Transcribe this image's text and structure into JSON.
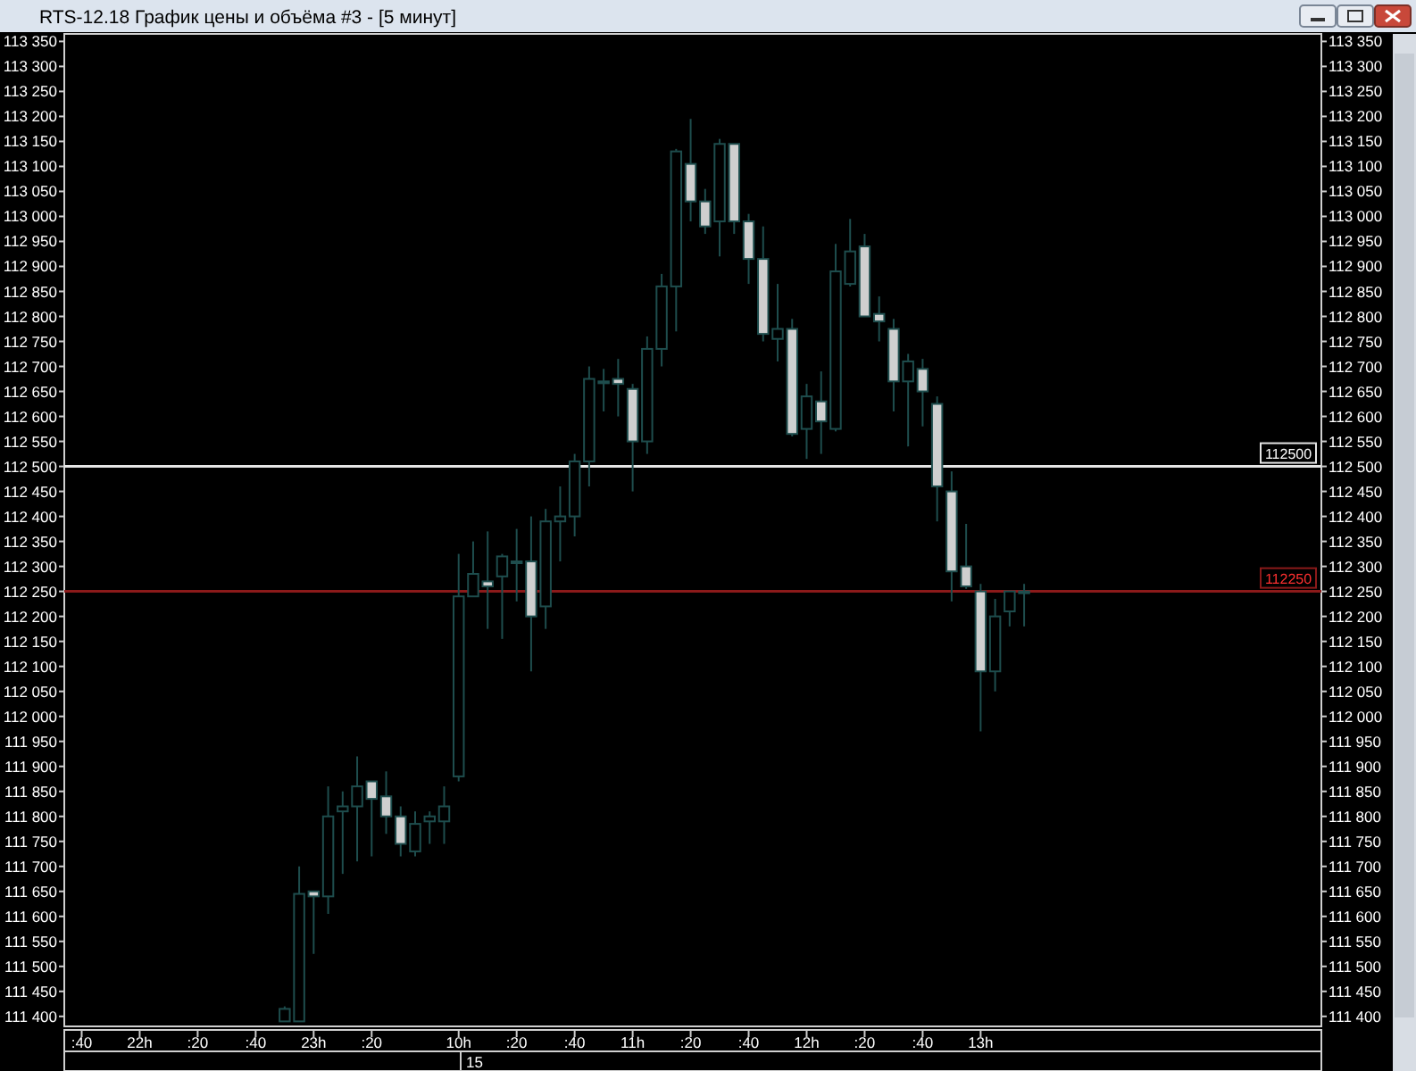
{
  "chart_data": {
    "type": "candlestick",
    "title": "RTS-12.18 График цены и объёма #3 - [5 минут]",
    "categories": [
      ":40",
      null,
      null,
      null,
      "22h",
      null,
      null,
      null,
      ":20",
      null,
      null,
      null,
      ":40",
      null,
      null,
      null,
      "23h",
      null,
      null,
      null,
      ":20",
      null,
      null,
      null,
      null,
      null,
      "10h",
      null,
      null,
      null,
      ":20",
      null,
      null,
      null,
      ":40",
      null,
      null,
      null,
      "11h",
      null,
      null,
      null,
      ":20",
      null,
      null,
      null,
      ":40",
      null,
      null,
      null,
      "12h",
      null,
      null,
      null,
      ":20",
      null,
      null,
      null,
      ":40",
      null,
      null,
      null,
      "13h",
      null,
      null,
      null,
      null,
      null,
      null,
      null,
      null,
      null,
      null,
      null,
      null,
      null,
      null,
      null,
      null,
      null,
      null,
      null,
      null,
      null,
      null,
      null
    ],
    "ohlc": [
      null,
      null,
      null,
      null,
      null,
      null,
      null,
      null,
      null,
      null,
      null,
      null,
      null,
      null,
      [
        111390,
        111420,
        111390,
        111415
      ],
      [
        111390,
        111700,
        111390,
        111645
      ],
      [
        111650,
        111650,
        111525,
        111640
      ],
      [
        111640,
        111860,
        111605,
        111800
      ],
      [
        111810,
        111850,
        111685,
        111820
      ],
      [
        111820,
        111920,
        111710,
        111860
      ],
      [
        111870,
        111870,
        111720,
        111835
      ],
      [
        111840,
        111890,
        111765,
        111800
      ],
      [
        111800,
        111820,
        111720,
        111745
      ],
      [
        111730,
        111810,
        111720,
        111785
      ],
      [
        111790,
        111810,
        111745,
        111800
      ],
      [
        111790,
        111860,
        111745,
        111820
      ],
      [
        111880,
        112325,
        111870,
        112240
      ],
      [
        112240,
        112350,
        112240,
        112285
      ],
      [
        112270,
        112370,
        112175,
        112260
      ],
      [
        112280,
        112325,
        112155,
        112320
      ],
      [
        112310,
        112375,
        112230,
        112310
      ],
      [
        112310,
        112400,
        112090,
        112200
      ],
      [
        112220,
        112415,
        112175,
        112390
      ],
      [
        112390,
        112460,
        112310,
        112400
      ],
      [
        112400,
        112525,
        112360,
        112510
      ],
      [
        112510,
        112700,
        112460,
        112675
      ],
      [
        112670,
        112695,
        112610,
        112670
      ],
      [
        112675,
        112715,
        112600,
        112665
      ],
      [
        112655,
        112665,
        112450,
        112550
      ],
      [
        112550,
        112760,
        112525,
        112735
      ],
      [
        112735,
        112885,
        112700,
        112860
      ],
      [
        112860,
        113135,
        112770,
        113130
      ],
      [
        113105,
        113195,
        112990,
        113030
      ],
      [
        113030,
        113055,
        112965,
        112980
      ],
      [
        112990,
        113155,
        112920,
        113145
      ],
      [
        113145,
        113145,
        112965,
        112990
      ],
      [
        112990,
        113005,
        112865,
        112915
      ],
      [
        112915,
        112980,
        112750,
        112765
      ],
      [
        112755,
        112865,
        112710,
        112775
      ],
      [
        112775,
        112795,
        112560,
        112565
      ],
      [
        112575,
        112665,
        112515,
        112640
      ],
      [
        112630,
        112690,
        112525,
        112590
      ],
      [
        112575,
        112945,
        112570,
        112890
      ],
      [
        112865,
        112995,
        112860,
        112930
      ],
      [
        112940,
        112965,
        112800,
        112800
      ],
      [
        112805,
        112840,
        112750,
        112790
      ],
      [
        112775,
        112795,
        112610,
        112670
      ],
      [
        112670,
        112725,
        112540,
        112710
      ],
      [
        112695,
        112715,
        112580,
        112650
      ],
      [
        112625,
        112640,
        112390,
        112460
      ],
      [
        112450,
        112490,
        112230,
        112290
      ],
      [
        112300,
        112385,
        112255,
        112260
      ],
      [
        112250,
        112265,
        111970,
        112090
      ],
      [
        112090,
        112235,
        112050,
        112200
      ],
      [
        112210,
        112250,
        112180,
        112250
      ],
      [
        112250,
        112265,
        112180,
        112250
      ],
      null,
      null,
      null,
      null,
      null,
      null,
      null,
      null,
      null,
      null,
      null,
      null,
      null,
      null,
      null,
      null,
      null,
      null,
      null,
      null
    ],
    "color": "#1e4d4d",
    "ylim": [
      111380,
      113365
    ],
    "yticks": [
      {
        "value": 111400,
        "label": "111 400"
      },
      {
        "value": 111450,
        "label": "111 450"
      },
      {
        "value": 111500,
        "label": "111 500"
      },
      {
        "value": 111550,
        "label": "111 550"
      },
      {
        "value": 111600,
        "label": "111 600"
      },
      {
        "value": 111650,
        "label": "111 650"
      },
      {
        "value": 111700,
        "label": "111 700"
      },
      {
        "value": 111750,
        "label": "111 750"
      },
      {
        "value": 111800,
        "label": "111 800"
      },
      {
        "value": 111850,
        "label": "111 850"
      },
      {
        "value": 111900,
        "label": "111 900"
      },
      {
        "value": 111950,
        "label": "111 950"
      },
      {
        "value": 112000,
        "label": "112 000"
      },
      {
        "value": 112050,
        "label": "112 050"
      },
      {
        "value": 112100,
        "label": "112 100"
      },
      {
        "value": 112150,
        "label": "112 150"
      },
      {
        "value": 112200,
        "label": "112 200"
      },
      {
        "value": 112250,
        "label": "112 250"
      },
      {
        "value": 112300,
        "label": "112 300"
      },
      {
        "value": 112350,
        "label": "112 350"
      },
      {
        "value": 112400,
        "label": "112 400"
      },
      {
        "value": 112450,
        "label": "112 450"
      },
      {
        "value": 112500,
        "label": "112 500"
      },
      {
        "value": 112550,
        "label": "112 550"
      },
      {
        "value": 112600,
        "label": "112 600"
      },
      {
        "value": 112650,
        "label": "112 650"
      },
      {
        "value": 112700,
        "label": "112 700"
      },
      {
        "value": 112750,
        "label": "112 750"
      },
      {
        "value": 112800,
        "label": "112 800"
      },
      {
        "value": 112850,
        "label": "112 850"
      },
      {
        "value": 112900,
        "label": "112 900"
      },
      {
        "value": 112950,
        "label": "112 950"
      },
      {
        "value": 113000,
        "label": "113 000"
      },
      {
        "value": 113050,
        "label": "113 050"
      },
      {
        "value": 113100,
        "label": "113 100"
      },
      {
        "value": 113150,
        "label": "113 150"
      },
      {
        "value": 113200,
        "label": "113 200"
      },
      {
        "value": 113250,
        "label": "113 250"
      },
      {
        "value": 113300,
        "label": "113 300"
      },
      {
        "value": 113350,
        "label": "113 350"
      }
    ],
    "y2lim": [
      111380,
      113365
    ],
    "y2ticks": [
      {
        "value": 111400,
        "label": "111 400"
      },
      {
        "value": 111450,
        "label": "111 450"
      },
      {
        "value": 111500,
        "label": "111 500"
      },
      {
        "value": 111550,
        "label": "111 550"
      },
      {
        "value": 111600,
        "label": "111 600"
      },
      {
        "value": 111650,
        "label": "111 650"
      },
      {
        "value": 111700,
        "label": "111 700"
      },
      {
        "value": 111750,
        "label": "111 750"
      },
      {
        "value": 111800,
        "label": "111 800"
      },
      {
        "value": 111850,
        "label": "111 850"
      },
      {
        "value": 111900,
        "label": "111 900"
      },
      {
        "value": 111950,
        "label": "111 950"
      },
      {
        "value": 112000,
        "label": "112 000"
      },
      {
        "value": 112050,
        "label": "112 050"
      },
      {
        "value": 112100,
        "label": "112 100"
      },
      {
        "value": 112150,
        "label": "112 150"
      },
      {
        "value": 112200,
        "label": "112 200"
      },
      {
        "value": 112250,
        "label": "112 250"
      },
      {
        "value": 112300,
        "label": "112 300"
      },
      {
        "value": 112350,
        "label": "112 350"
      },
      {
        "value": 112400,
        "label": "112 400"
      },
      {
        "value": 112450,
        "label": "112 450"
      },
      {
        "value": 112500,
        "label": "112 500"
      },
      {
        "value": 112550,
        "label": "112 550"
      },
      {
        "value": 112600,
        "label": "112 600"
      },
      {
        "value": 112650,
        "label": "112 650"
      },
      {
        "value": 112700,
        "label": "112 700"
      },
      {
        "value": 112750,
        "label": "112 750"
      },
      {
        "value": 112800,
        "label": "112 800"
      },
      {
        "value": 112850,
        "label": "112 850"
      },
      {
        "value": 112900,
        "label": "112 900"
      },
      {
        "value": 112950,
        "label": "112 950"
      },
      {
        "value": 113000,
        "label": "113 000"
      },
      {
        "value": 113050,
        "label": "113 050"
      },
      {
        "value": 113100,
        "label": "113 100"
      },
      {
        "value": 113150,
        "label": "113 150"
      },
      {
        "value": 113200,
        "label": "113 200"
      },
      {
        "value": 113250,
        "label": "113 250"
      },
      {
        "value": 113300,
        "label": "113 300"
      },
      {
        "value": 113350,
        "label": "113 350"
      }
    ],
    "ref_lines": [
      {
        "axis": "y",
        "value": 112500,
        "label": "112500",
        "color": "#e6e6e6"
      },
      {
        "axis": "y",
        "value": 112250,
        "label": "112250",
        "color": "#8b1a1a"
      }
    ],
    "annotations": [
      "15"
    ]
  }
}
